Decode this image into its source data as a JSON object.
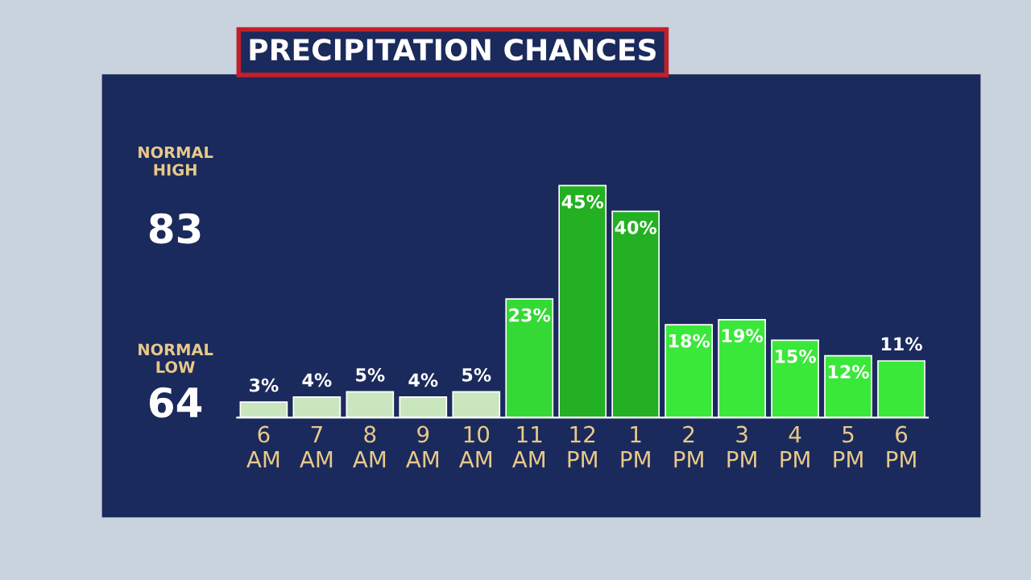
{
  "chart_data": {
    "type": "bar",
    "title": "PRECIPITATION CHANCES",
    "categories": [
      "6\nAM",
      "7\nAM",
      "8\nAM",
      "9\nAM",
      "10\nAM",
      "11\nAM",
      "12\nPM",
      "1\nPM",
      "2\nPM",
      "3\nPM",
      "4\nPM",
      "5\nPM",
      "6\nPM"
    ],
    "values": [
      3,
      4,
      5,
      4,
      5,
      23,
      45,
      40,
      18,
      19,
      15,
      12,
      11
    ],
    "colors": [
      "#c9e6bf",
      "#c9e6bf",
      "#c9e6bf",
      "#c9e6bf",
      "#c9e6bf",
      "#35d935",
      "#23b023",
      "#23b023",
      "#3ae83a",
      "#3ae83a",
      "#3ae83a",
      "#3ae83a",
      "#3ae83a"
    ],
    "value_labels": [
      "3%",
      "4%",
      "5%",
      "4%",
      "5%",
      "23%",
      "45%",
      "40%",
      "18%",
      "19%",
      "15%",
      "12%",
      "11%"
    ],
    "annotations": [
      "NORMAL\nHIGH",
      "83",
      "NORMAL\nLOW",
      "64"
    ],
    "grid": false,
    "legend": false,
    "tick_labels": "x"
  }
}
